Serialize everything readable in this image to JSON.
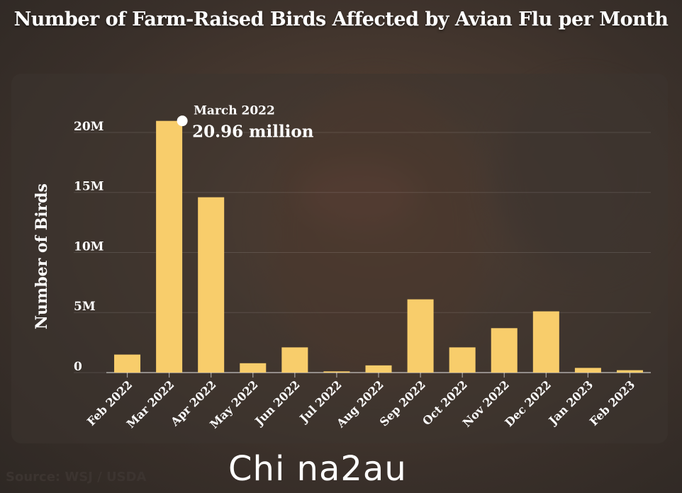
{
  "chart_data": {
    "type": "bar",
    "title": "Number of Farm-Raised Birds Affected by Avian Flu per Month",
    "ylabel": "Number of Birds",
    "xlabel": "",
    "categories": [
      "Feb 2022",
      "Mar 2022",
      "Apr 2022",
      "May 2022",
      "Jun 2022",
      "Jul 2022",
      "Aug 2022",
      "Sep 2022",
      "Oct 2022",
      "Nov 2022",
      "Dec 2022",
      "Jan 2023",
      "Feb 2023"
    ],
    "values": [
      1500000,
      20960000,
      14600000,
      780000,
      2100000,
      100000,
      600000,
      6100000,
      2100000,
      3700000,
      5100000,
      390000,
      200000
    ],
    "y_ticks": [
      "0",
      "5M",
      "10M",
      "15M",
      "20M"
    ],
    "ylim": [
      0,
      22000000
    ],
    "grid": true,
    "bar_color": "#f8cd6b",
    "annotation": {
      "category": "Mar 2022",
      "label": "March 2022",
      "value_text": "20.96 million"
    }
  },
  "source": "Source: WSJ / USDA",
  "watermark": "Chi na2au"
}
